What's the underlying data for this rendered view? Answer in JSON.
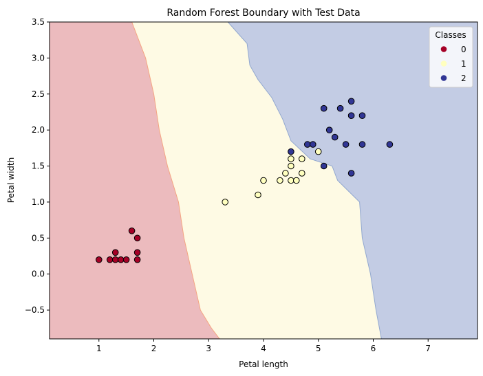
{
  "chart_data": {
    "type": "scatter",
    "title": "Random Forest Boundary with Test Data",
    "xlabel": "Petal length",
    "ylabel": "Petal width",
    "xlim": [
      0.1,
      7.9
    ],
    "ylim": [
      -0.9,
      3.5
    ],
    "x_ticks": [
      1,
      2,
      3,
      4,
      5,
      6,
      7
    ],
    "y_ticks": [
      -0.5,
      0.0,
      0.5,
      1.0,
      1.5,
      2.0,
      2.5,
      3.0,
      3.5
    ],
    "x_tick_labels": [
      "1",
      "2",
      "3",
      "4",
      "5",
      "6",
      "7"
    ],
    "y_tick_labels": [
      "−0.5",
      "0.0",
      "0.5",
      "1.0",
      "1.5",
      "2.0",
      "2.5",
      "3.0",
      "3.5"
    ],
    "grid": false,
    "legend": {
      "title": "Classes",
      "placement": "top-right",
      "entries": [
        "0",
        "1",
        "2"
      ]
    },
    "colors": {
      "class_0": "#a50026",
      "class_1": "#ffffbf",
      "class_2": "#313695",
      "region_0": "#ecbbbe",
      "region_1": "#fefae4",
      "region_2": "#c3cce4",
      "boundary_01": "#f4a582",
      "boundary_12": "#92a8cf",
      "marker_edge": "#000000"
    },
    "boundaries": {
      "class0_class1": [
        [
          1.6,
          3.5
        ],
        [
          1.85,
          3.0
        ],
        [
          2.0,
          2.5
        ],
        [
          2.1,
          2.0
        ],
        [
          2.25,
          1.5
        ],
        [
          2.45,
          1.0
        ],
        [
          2.55,
          0.5
        ],
        [
          2.7,
          0.0
        ],
        [
          2.85,
          -0.5
        ],
        [
          3.05,
          -0.75
        ],
        [
          3.2,
          -0.9
        ]
      ],
      "class1_class2": [
        [
          3.35,
          3.5
        ],
        [
          3.7,
          3.2
        ],
        [
          3.75,
          2.9
        ],
        [
          3.9,
          2.7
        ],
        [
          4.15,
          2.45
        ],
        [
          4.35,
          2.15
        ],
        [
          4.5,
          1.85
        ],
        [
          4.85,
          1.6
        ],
        [
          5.25,
          1.5
        ],
        [
          5.35,
          1.3
        ],
        [
          5.75,
          1.0
        ],
        [
          5.8,
          0.5
        ],
        [
          5.95,
          0.0
        ],
        [
          6.05,
          -0.5
        ],
        [
          6.15,
          -0.9
        ]
      ]
    },
    "series": [
      {
        "name": "0",
        "points": [
          [
            1.0,
            0.2
          ],
          [
            1.2,
            0.2
          ],
          [
            1.3,
            0.2
          ],
          [
            1.3,
            0.3
          ],
          [
            1.4,
            0.2
          ],
          [
            1.5,
            0.2
          ],
          [
            1.6,
            0.6
          ],
          [
            1.7,
            0.5
          ],
          [
            1.7,
            0.3
          ],
          [
            1.7,
            0.2
          ]
        ]
      },
      {
        "name": "1",
        "points": [
          [
            3.3,
            1.0
          ],
          [
            3.9,
            1.1
          ],
          [
            4.0,
            1.3
          ],
          [
            4.3,
            1.3
          ],
          [
            4.4,
            1.4
          ],
          [
            4.5,
            1.5
          ],
          [
            4.5,
            1.6
          ],
          [
            4.5,
            1.3
          ],
          [
            4.6,
            1.3
          ],
          [
            4.7,
            1.4
          ],
          [
            4.7,
            1.6
          ],
          [
            5.0,
            1.7
          ]
        ]
      },
      {
        "name": "2",
        "points": [
          [
            4.5,
            1.7
          ],
          [
            4.8,
            1.8
          ],
          [
            4.9,
            1.8
          ],
          [
            5.1,
            2.3
          ],
          [
            5.1,
            1.5
          ],
          [
            5.2,
            2.0
          ],
          [
            5.3,
            1.9
          ],
          [
            5.4,
            2.3
          ],
          [
            5.5,
            1.8
          ],
          [
            5.6,
            2.4
          ],
          [
            5.6,
            2.2
          ],
          [
            5.6,
            1.4
          ],
          [
            5.8,
            2.2
          ],
          [
            5.8,
            1.8
          ],
          [
            6.3,
            1.8
          ]
        ]
      }
    ]
  }
}
